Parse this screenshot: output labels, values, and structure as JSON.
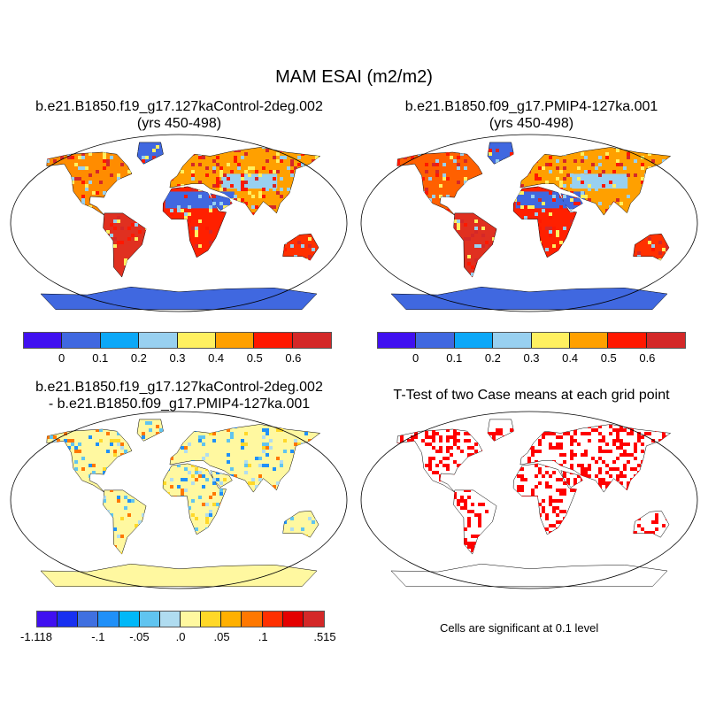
{
  "title": "MAM ESAI (m2/m2)",
  "panels": [
    {
      "title_line1": "b.e21.B1850.f19_g17.127kaControl-2deg.002",
      "title_line2": "(yrs 450-498)"
    },
    {
      "title_line1": "b.e21.B1850.f09_g17.PMIP4-127ka.001",
      "title_line2": "(yrs 450-498)"
    },
    {
      "title_line1": "b.e21.B1850.f19_g17.127kaControl-2deg.002",
      "title_line2": "- b.e21.B1850.f09_g17.PMIP4-127ka.001"
    },
    {
      "title_line1": "T-Test of two Case means at each grid point"
    }
  ],
  "colorbar_cases": {
    "colors": [
      "#4010f0",
      "#4068e0",
      "#0ca8f8",
      "#98d0f0",
      "#fff060",
      "#ffa000",
      "#ff1800",
      "#d42828"
    ],
    "labels": [
      "0",
      "0.1",
      "0.2",
      "0.3",
      "0.4",
      "0.5",
      "0.6"
    ]
  },
  "colorbar_diff": {
    "colors": [
      "#4010f0",
      "#1830f0",
      "#4070e0",
      "#2090f8",
      "#00b8f8",
      "#60c4f0",
      "#b0dcf0",
      "#fff8a0",
      "#ffd828",
      "#ffb000",
      "#ff7800",
      "#ff3000",
      "#e40000",
      "#d42828"
    ],
    "labels": [
      "-1.118",
      "-.1",
      "-.05",
      ".0",
      ".05",
      ".1",
      ".515"
    ]
  },
  "significance_note": "Cells are significant at 0.1 level",
  "significance_color": "#ff0000"
}
